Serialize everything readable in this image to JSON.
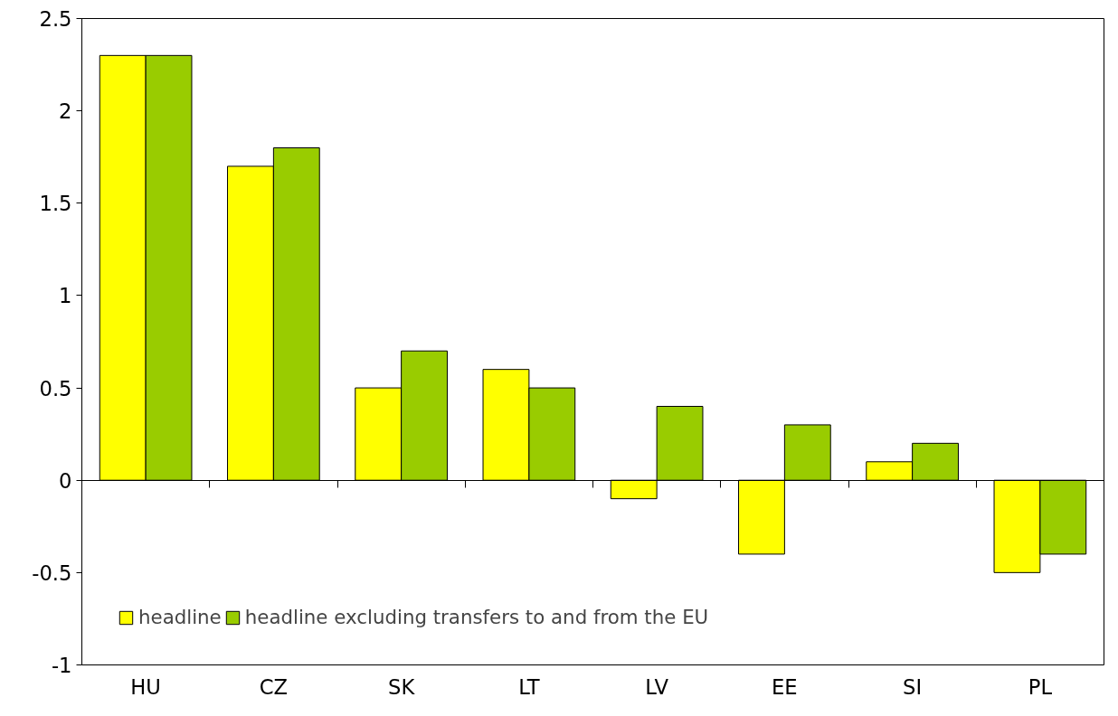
{
  "chart_data": {
    "type": "bar",
    "categories": [
      "HU",
      "CZ",
      "SK",
      "LT",
      "LV",
      "EE",
      "SI",
      "PL"
    ],
    "series": [
      {
        "name": "headline",
        "color": "#ffff00",
        "values": [
          2.3,
          1.7,
          0.5,
          0.6,
          -0.1,
          -0.4,
          0.1,
          -0.5
        ]
      },
      {
        "name": "headline excluding transfers to and from the EU",
        "color": "#99cc00",
        "values": [
          2.3,
          1.8,
          0.7,
          0.5,
          0.4,
          0.3,
          0.2,
          -0.4
        ]
      }
    ],
    "ylim": [
      -1,
      2.5
    ],
    "yticks": [
      -1,
      -0.5,
      0,
      0.5,
      1,
      1.5,
      2,
      2.5
    ],
    "legend": "bottom left"
  }
}
